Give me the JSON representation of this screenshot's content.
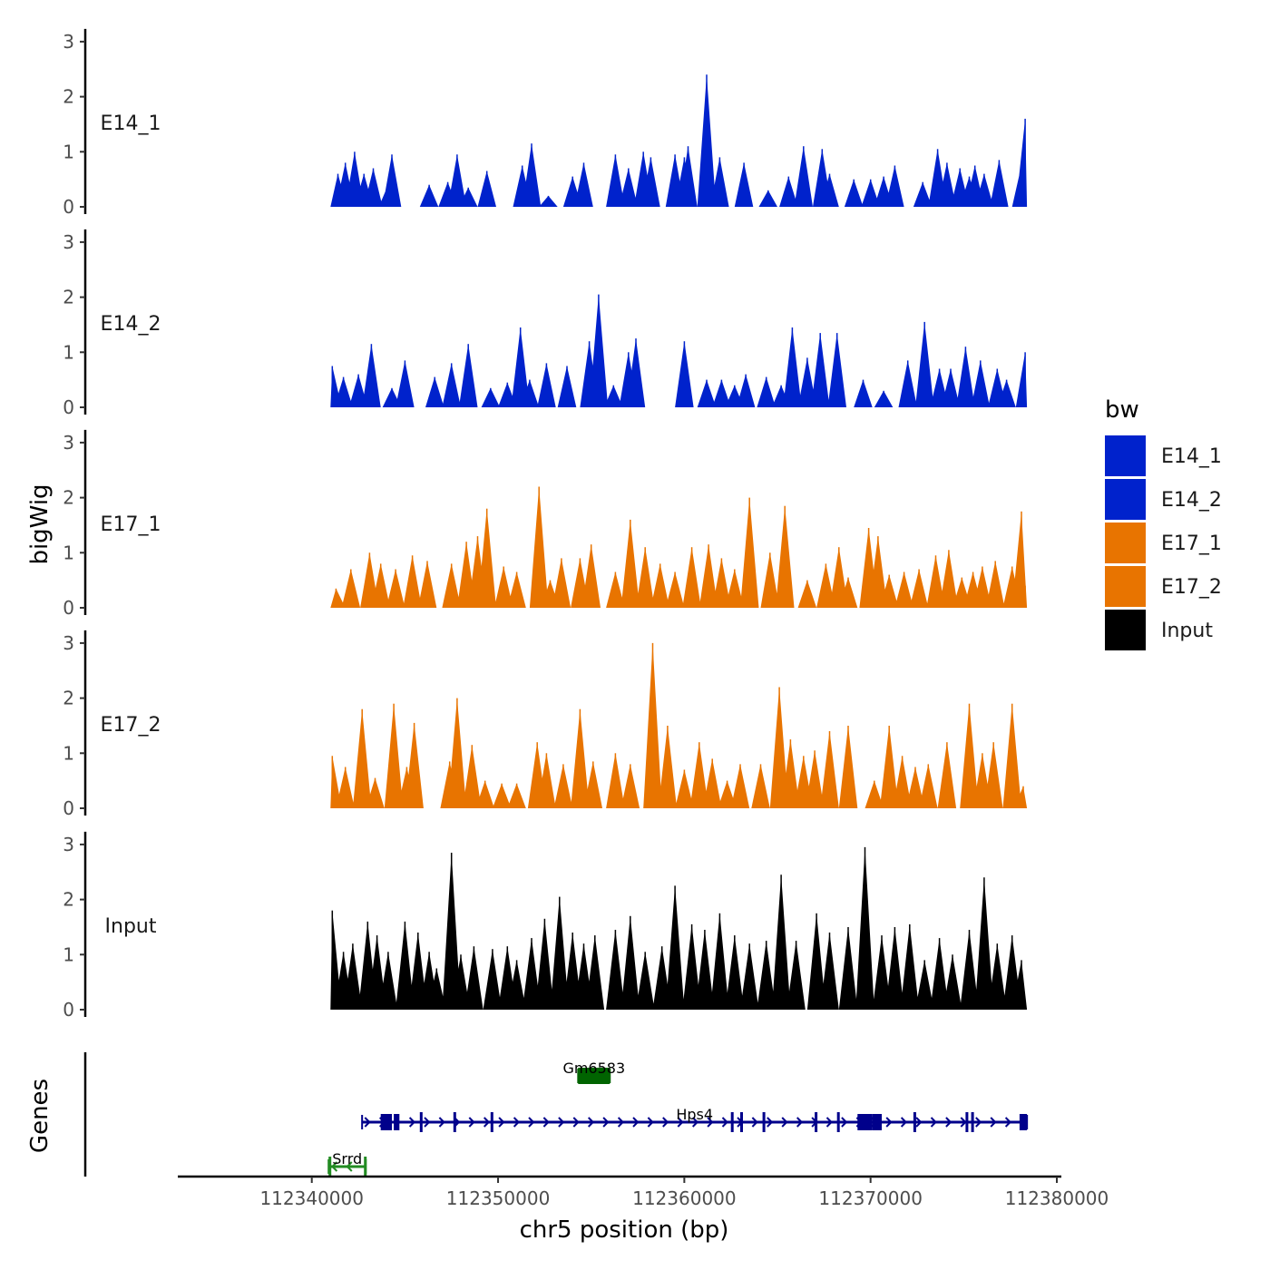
{
  "chart_data": {
    "type": "area",
    "title": "",
    "xlabel": "chr5 position (bp)",
    "ylabel": "bigWig",
    "genes_label": "Genes",
    "xlim": [
      112333000,
      112380000
    ],
    "ylim": [
      0,
      3.2
    ],
    "x_ticks": [
      112340000,
      112350000,
      112360000,
      112370000,
      112380000
    ],
    "x_tick_labels": [
      "112340000",
      "112350000",
      "112360000",
      "112370000",
      "112380000"
    ],
    "y_ticks": [
      0,
      1,
      2,
      3
    ],
    "y_tick_labels": [
      "0",
      "1",
      "2",
      "3"
    ],
    "signal_range": [
      112341000,
      112378400
    ],
    "legend": {
      "title": "bw",
      "entries": [
        {
          "label": "E14_1",
          "color": "#0022cc"
        },
        {
          "label": "E14_2",
          "color": "#0022cc"
        },
        {
          "label": "E17_1",
          "color": "#e87400"
        },
        {
          "label": "E17_2",
          "color": "#e87400"
        },
        {
          "label": "Input",
          "color": "#000000"
        }
      ]
    },
    "tracks": [
      {
        "name": "E14_1",
        "color": "#0022cc",
        "peaks": [
          [
            112341400,
            0.6
          ],
          [
            112341800,
            0.8
          ],
          [
            112342300,
            1.0
          ],
          [
            112342800,
            0.6
          ],
          [
            112343300,
            0.7
          ],
          [
            112344100,
            0.4
          ],
          [
            112344300,
            0.95
          ],
          [
            112346300,
            0.4
          ],
          [
            112347300,
            0.45
          ],
          [
            112347800,
            0.95
          ],
          [
            112348400,
            0.35
          ],
          [
            112349400,
            0.65
          ],
          [
            112351300,
            0.75
          ],
          [
            112351800,
            1.15
          ],
          [
            112352700,
            0.2
          ],
          [
            112354000,
            0.55
          ],
          [
            112354600,
            0.8
          ],
          [
            112356300,
            0.95
          ],
          [
            112357000,
            0.7
          ],
          [
            112357800,
            1.0
          ],
          [
            112358200,
            0.9
          ],
          [
            112359500,
            0.95
          ],
          [
            112360000,
            0.9
          ],
          [
            112360200,
            1.1
          ],
          [
            112361200,
            2.4
          ],
          [
            112361900,
            0.9
          ],
          [
            112363200,
            0.8
          ],
          [
            112364500,
            0.3
          ],
          [
            112365600,
            0.55
          ],
          [
            112366400,
            1.1
          ],
          [
            112367400,
            1.05
          ],
          [
            112367800,
            0.6
          ],
          [
            112369100,
            0.5
          ],
          [
            112370000,
            0.5
          ],
          [
            112370700,
            0.55
          ],
          [
            112371300,
            0.75
          ],
          [
            112372800,
            0.45
          ],
          [
            112373600,
            1.05
          ],
          [
            112374100,
            0.8
          ],
          [
            112374800,
            0.7
          ],
          [
            112375300,
            0.55
          ],
          [
            112375600,
            0.75
          ],
          [
            112376100,
            0.6
          ],
          [
            112376900,
            0.85
          ],
          [
            112378100,
            0.75
          ],
          [
            112378300,
            1.6
          ]
        ]
      },
      {
        "name": "E14_2",
        "color": "#0022cc",
        "peaks": [
          [
            112341100,
            0.75
          ],
          [
            112341700,
            0.55
          ],
          [
            112342500,
            0.6
          ],
          [
            112343200,
            1.15
          ],
          [
            112344300,
            0.35
          ],
          [
            112345000,
            0.85
          ],
          [
            112346600,
            0.55
          ],
          [
            112347500,
            0.8
          ],
          [
            112348400,
            1.15
          ],
          [
            112349600,
            0.35
          ],
          [
            112350500,
            0.45
          ],
          [
            112351200,
            1.45
          ],
          [
            112351700,
            0.5
          ],
          [
            112352600,
            0.8
          ],
          [
            112353700,
            0.75
          ],
          [
            112354900,
            1.2
          ],
          [
            112355400,
            2.05
          ],
          [
            112356200,
            0.4
          ],
          [
            112357000,
            1.0
          ],
          [
            112357400,
            1.25
          ],
          [
            112360000,
            1.2
          ],
          [
            112361200,
            0.5
          ],
          [
            112362000,
            0.5
          ],
          [
            112362700,
            0.4
          ],
          [
            112363300,
            0.6
          ],
          [
            112364400,
            0.55
          ],
          [
            112365200,
            0.4
          ],
          [
            112365800,
            1.45
          ],
          [
            112366600,
            0.9
          ],
          [
            112367300,
            1.35
          ],
          [
            112368200,
            1.35
          ],
          [
            112369600,
            0.5
          ],
          [
            112370700,
            0.3
          ],
          [
            112372000,
            0.85
          ],
          [
            112372900,
            1.55
          ],
          [
            112373700,
            0.7
          ],
          [
            112374300,
            0.7
          ],
          [
            112375100,
            1.1
          ],
          [
            112375900,
            0.85
          ],
          [
            112376800,
            0.7
          ],
          [
            112377300,
            0.5
          ],
          [
            112378300,
            1.0
          ]
        ]
      },
      {
        "name": "E17_1",
        "color": "#e87400",
        "peaks": [
          [
            112341300,
            0.35
          ],
          [
            112342100,
            0.7
          ],
          [
            112343100,
            1.0
          ],
          [
            112343700,
            0.8
          ],
          [
            112344500,
            0.7
          ],
          [
            112345400,
            0.95
          ],
          [
            112346200,
            0.85
          ],
          [
            112347500,
            0.8
          ],
          [
            112348300,
            1.2
          ],
          [
            112348900,
            1.3
          ],
          [
            112349400,
            1.8
          ],
          [
            112350300,
            0.75
          ],
          [
            112351000,
            0.65
          ],
          [
            112352200,
            2.2
          ],
          [
            112352800,
            0.5
          ],
          [
            112353400,
            0.9
          ],
          [
            112354400,
            0.9
          ],
          [
            112355000,
            1.15
          ],
          [
            112356300,
            0.65
          ],
          [
            112357100,
            1.6
          ],
          [
            112357900,
            1.1
          ],
          [
            112358700,
            0.8
          ],
          [
            112359500,
            0.65
          ],
          [
            112360400,
            1.1
          ],
          [
            112361300,
            1.15
          ],
          [
            112362000,
            0.9
          ],
          [
            112362700,
            0.7
          ],
          [
            112363500,
            2.0
          ],
          [
            112364600,
            1.0
          ],
          [
            112365400,
            1.85
          ],
          [
            112366600,
            0.5
          ],
          [
            112367600,
            0.8
          ],
          [
            112368300,
            1.1
          ],
          [
            112368800,
            0.55
          ],
          [
            112369900,
            1.45
          ],
          [
            112370400,
            1.3
          ],
          [
            112371000,
            0.6
          ],
          [
            112371800,
            0.65
          ],
          [
            112372600,
            0.7
          ],
          [
            112373500,
            0.95
          ],
          [
            112374200,
            1.05
          ],
          [
            112374900,
            0.55
          ],
          [
            112375500,
            0.65
          ],
          [
            112376000,
            0.75
          ],
          [
            112376700,
            0.85
          ],
          [
            112377600,
            0.75
          ],
          [
            112378100,
            1.75
          ],
          [
            112378300,
            0.4
          ]
        ]
      },
      {
        "name": "E17_2",
        "color": "#e87400",
        "peaks": [
          [
            112341100,
            0.95
          ],
          [
            112341800,
            0.75
          ],
          [
            112342700,
            1.8
          ],
          [
            112343400,
            0.55
          ],
          [
            112344400,
            1.9
          ],
          [
            112345100,
            0.75
          ],
          [
            112345500,
            1.55
          ],
          [
            112347400,
            0.85
          ],
          [
            112347800,
            2.0
          ],
          [
            112348600,
            1.15
          ],
          [
            112349300,
            0.5
          ],
          [
            112350200,
            0.45
          ],
          [
            112351000,
            0.45
          ],
          [
            112352100,
            1.2
          ],
          [
            112352600,
            1.0
          ],
          [
            112353500,
            0.8
          ],
          [
            112354400,
            1.8
          ],
          [
            112355100,
            0.85
          ],
          [
            112356300,
            1.0
          ],
          [
            112357100,
            0.8
          ],
          [
            112358300,
            3.0
          ],
          [
            112359100,
            1.5
          ],
          [
            112360000,
            0.7
          ],
          [
            112360800,
            1.2
          ],
          [
            112361500,
            0.9
          ],
          [
            112362300,
            0.5
          ],
          [
            112363000,
            0.8
          ],
          [
            112364100,
            0.8
          ],
          [
            112365100,
            2.2
          ],
          [
            112365700,
            1.25
          ],
          [
            112366400,
            0.95
          ],
          [
            112367000,
            1.05
          ],
          [
            112367800,
            1.4
          ],
          [
            112368800,
            1.5
          ],
          [
            112370200,
            0.5
          ],
          [
            112371000,
            1.5
          ],
          [
            112371700,
            0.95
          ],
          [
            112372400,
            0.75
          ],
          [
            112373100,
            0.8
          ],
          [
            112374100,
            1.2
          ],
          [
            112375300,
            1.9
          ],
          [
            112376000,
            1.0
          ],
          [
            112376600,
            1.2
          ],
          [
            112377600,
            1.9
          ],
          [
            112378200,
            0.4
          ]
        ]
      },
      {
        "name": "Input",
        "color": "#000000",
        "peaks": [
          [
            112341100,
            1.8
          ],
          [
            112341700,
            1.05
          ],
          [
            112342200,
            1.2
          ],
          [
            112343000,
            1.6
          ],
          [
            112343500,
            1.35
          ],
          [
            112344100,
            1.05
          ],
          [
            112345000,
            1.6
          ],
          [
            112345700,
            1.4
          ],
          [
            112346300,
            1.05
          ],
          [
            112346700,
            0.75
          ],
          [
            112347500,
            2.85
          ],
          [
            112348000,
            1.0
          ],
          [
            112348700,
            1.15
          ],
          [
            112349700,
            1.1
          ],
          [
            112350500,
            1.15
          ],
          [
            112351000,
            0.9
          ],
          [
            112351800,
            1.3
          ],
          [
            112352500,
            1.65
          ],
          [
            112353300,
            2.05
          ],
          [
            112354000,
            1.4
          ],
          [
            112354600,
            1.2
          ],
          [
            112355200,
            1.35
          ],
          [
            112356300,
            1.45
          ],
          [
            112357100,
            1.7
          ],
          [
            112357900,
            1.05
          ],
          [
            112358800,
            1.15
          ],
          [
            112359500,
            2.25
          ],
          [
            112360400,
            1.55
          ],
          [
            112361100,
            1.45
          ],
          [
            112361900,
            1.75
          ],
          [
            112362700,
            1.35
          ],
          [
            112363500,
            1.2
          ],
          [
            112364400,
            1.25
          ],
          [
            112365200,
            2.45
          ],
          [
            112366000,
            1.25
          ],
          [
            112367100,
            1.75
          ],
          [
            112367800,
            1.4
          ],
          [
            112368800,
            1.5
          ],
          [
            112369700,
            2.95
          ],
          [
            112370600,
            1.35
          ],
          [
            112371300,
            1.5
          ],
          [
            112372100,
            1.55
          ],
          [
            112372900,
            0.9
          ],
          [
            112373700,
            1.3
          ],
          [
            112374400,
            1.0
          ],
          [
            112375300,
            1.45
          ],
          [
            112376100,
            2.4
          ],
          [
            112376800,
            1.2
          ],
          [
            112377600,
            1.35
          ],
          [
            112378100,
            0.9
          ]
        ]
      }
    ],
    "gene_tracks": [
      {
        "name": "Gm6583",
        "color": "#006400",
        "strand": "+",
        "start": 112354300,
        "end": 112356000,
        "exons": [
          [
            112354300,
            112356000
          ]
        ]
      },
      {
        "name": "Hps4",
        "color": "#00008b",
        "strand": "+",
        "start": 112342700,
        "end": 112378400,
        "exons": [
          [
            112343700,
            112344300
          ],
          [
            112344400,
            112344700
          ],
          [
            112345800,
            112345900
          ],
          [
            112347600,
            112347700
          ],
          [
            112349600,
            112349700
          ],
          [
            112362500,
            112362600
          ],
          [
            112363000,
            112363100
          ],
          [
            112364200,
            112364300
          ],
          [
            112367000,
            112367100
          ],
          [
            112368200,
            112368300
          ],
          [
            112369300,
            112370100
          ],
          [
            112370100,
            112370600
          ],
          [
            112372300,
            112372400
          ],
          [
            112375100,
            112375200
          ],
          [
            112375400,
            112375500
          ],
          [
            112378000,
            112378400
          ]
        ]
      },
      {
        "name": "Srrd",
        "color": "#228b22",
        "strand": "-",
        "start": 112340900,
        "end": 112342900,
        "exons": [
          [
            112340900,
            112341000
          ],
          [
            112342800,
            112342900
          ]
        ]
      }
    ]
  }
}
